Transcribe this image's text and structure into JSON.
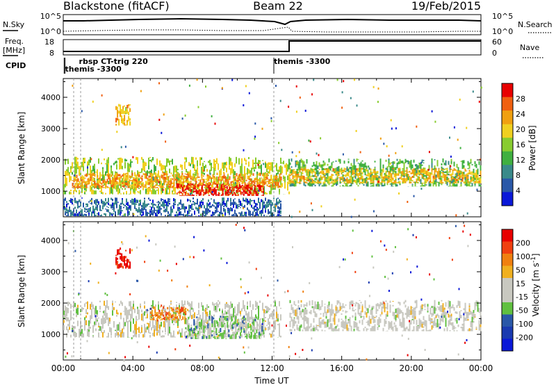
{
  "header": {
    "site": "Blackstone (fitACF)",
    "beam": "Beam 22",
    "date": "19/Feb/2015"
  },
  "panel_labels": {
    "nsky": "N.Sky",
    "nsearch": "N.Search",
    "freq_line1": "Freq.",
    "freq_line2": "[MHz]",
    "nave": "Nave",
    "cpid": "CPID"
  },
  "noise_axis": {
    "top": "10^5",
    "bottom": "10^0"
  },
  "freq_axis": {
    "left_top": "18",
    "left_bottom": "8",
    "right_top": "60",
    "right_bottom": "0"
  },
  "cpid_labels": [
    {
      "text": "rbsp CT-trig 220",
      "time": 0.9
    },
    {
      "text": "themis -3300",
      "time": 0.1
    },
    {
      "text": "themis -3300",
      "time": 12.1
    }
  ],
  "colors": {
    "power_scale": [
      "#0a18d8",
      "#2a58a8",
      "#3a8a8a",
      "#40b040",
      "#88cc30",
      "#f0d020",
      "#f0a010",
      "#f06010",
      "#e80000"
    ],
    "velocity_scale": [
      "#e80000",
      "#f04010",
      "#f08010",
      "#f0b020",
      "#c8c8c0",
      "#c8c8c0",
      "#60c040",
      "#2a58a8",
      "#1a3ab0",
      "#0a18d8"
    ]
  },
  "chart_data": [
    {
      "type": "heatmap",
      "name": "power",
      "xlabel": "",
      "ylabel": "Slant Range [km]",
      "colorbar_label": "Power [dB]",
      "colorbar_ticks": [
        4,
        8,
        12,
        16,
        20,
        24,
        28
      ],
      "colorbar_range": [
        0,
        30
      ],
      "yticks": [
        1000,
        2000,
        3000,
        4000
      ],
      "ylim": [
        180,
        4600
      ],
      "xlim": [
        0,
        24
      ],
      "regions": [
        {
          "x0": 0.0,
          "x1": 13.0,
          "y0": 900,
          "y1": 2100,
          "level": 16
        },
        {
          "x0": 0.5,
          "x1": 12.5,
          "y0": 1100,
          "y1": 1600,
          "level": 22
        },
        {
          "x0": 6.5,
          "x1": 11.5,
          "y0": 850,
          "y1": 1250,
          "level": 28
        },
        {
          "x0": 3.0,
          "x1": 3.8,
          "y0": 3100,
          "y1": 3800,
          "level": 20
        },
        {
          "x0": 13.0,
          "x1": 24.0,
          "y0": 1150,
          "y1": 2050,
          "level": 12
        },
        {
          "x0": 13.0,
          "x1": 24.0,
          "y0": 1250,
          "y1": 1750,
          "level": 20
        },
        {
          "x0": 0.0,
          "x1": 12.5,
          "y0": 200,
          "y1": 800,
          "level": 6
        }
      ]
    },
    {
      "type": "heatmap",
      "name": "velocity",
      "xlabel": "Time UT",
      "ylabel": "Slant Range [km]",
      "colorbar_label": "Velocity [m s^-1]",
      "colorbar_ticks": [
        "200",
        "100",
        "50",
        "15",
        "-15",
        "-50",
        "-100",
        "-200"
      ],
      "colorbar_range": [
        -250,
        250
      ],
      "xticks": [
        "00:00",
        "04:00",
        "08:00",
        "12:00",
        "16:00",
        "20:00",
        "00:00"
      ],
      "yticks": [
        1000,
        2000,
        3000,
        4000
      ],
      "ylim": [
        180,
        4600
      ],
      "xlim": [
        0,
        24
      ],
      "regions": [
        {
          "x0": 0.0,
          "x1": 12.5,
          "y0": 900,
          "y1": 2100,
          "level": 0
        },
        {
          "x0": 7.0,
          "x1": 11.5,
          "y0": 850,
          "y1": 1600,
          "level": -60
        },
        {
          "x0": 5.0,
          "x1": 7.0,
          "y0": 1450,
          "y1": 1900,
          "level": 120
        },
        {
          "x0": 3.0,
          "x1": 3.8,
          "y0": 3100,
          "y1": 3800,
          "level": 220
        },
        {
          "x0": 13.0,
          "x1": 24.0,
          "y0": 1100,
          "y1": 2100,
          "level": 0
        }
      ]
    }
  ]
}
